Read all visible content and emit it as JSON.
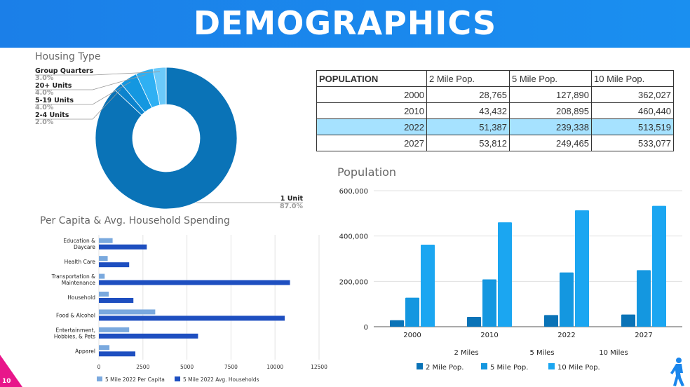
{
  "banner": {
    "title": "DEMOGRAPHICS"
  },
  "page_number": "10",
  "colors": {
    "banner": "#1a86ec",
    "dark_blue": "#0a73b7",
    "mid_blue": "#1497e0",
    "light_blue": "#1ba6f1",
    "table_highlight": "#a6e2ff",
    "accent_pink": "#e8168a"
  },
  "population_table": {
    "headers": [
      "POPULATION",
      "2 Mile Pop.",
      "5 Mile Pop.",
      "10 Mile Pop."
    ],
    "rows": [
      [
        "2000",
        "28,765",
        "127,890",
        "362,027"
      ],
      [
        "2010",
        "43,432",
        "208,895",
        "460,440"
      ],
      [
        "2022",
        "51,387",
        "239,338",
        "513,519"
      ],
      [
        "2027",
        "53,812",
        "249,465",
        "533,077"
      ]
    ],
    "highlight_row": 2
  },
  "chart_data": [
    {
      "type": "pie",
      "title": "Housing Type",
      "labels": [
        "1 Unit",
        "2-4 Units",
        "5-19 Units",
        "20+ Units",
        "Group Quarters"
      ],
      "values": [
        87.0,
        2.0,
        4.0,
        4.0,
        3.0
      ],
      "value_labels": [
        "87.0%",
        "2.0%",
        "4.0%",
        "4.0%",
        "3.0%"
      ],
      "colors": [
        "#0a73b7",
        "#0c83cd",
        "#1497e0",
        "#2fb0f3",
        "#6ccafa"
      ],
      "donut": true
    },
    {
      "type": "bar",
      "orientation": "horizontal",
      "title": "Per Capita & Avg. Household Spending",
      "categories": [
        "Education &\nDaycare",
        "Health Care",
        "Transportation &\nMaintenance",
        "Household",
        "Food & Alcohol",
        "Entertainment,\nHobbies, & Pets",
        "Apparel"
      ],
      "series": [
        {
          "name": "5 Mile 2022 Per Capita",
          "values": [
            780,
            500,
            330,
            560,
            3200,
            1720,
            600
          ],
          "color": "#7aa9de"
        },
        {
          "name": "5 Mile 2022 Avg. Households",
          "values": [
            2720,
            1720,
            10850,
            1960,
            10550,
            5630,
            2070
          ],
          "color": "#1e4fc0"
        }
      ],
      "xticks": [
        "0",
        "2500",
        "5000",
        "7500",
        "10000",
        "12500"
      ],
      "xlim": [
        0,
        12500
      ],
      "grid": true,
      "legend_position": "bottom"
    },
    {
      "type": "bar",
      "title": "Population",
      "categories": [
        "2000",
        "2010",
        "2022",
        "2027"
      ],
      "series": [
        {
          "name": "2 Mile Pop.",
          "values": [
            28765,
            43432,
            51387,
            53812
          ],
          "color": "#0a73b7"
        },
        {
          "name": "5 Mile Pop.",
          "values": [
            127890,
            208895,
            239338,
            249465
          ],
          "color": "#1497e0"
        },
        {
          "name": "10 Mile Pop.",
          "values": [
            362027,
            460440,
            513519,
            533077
          ],
          "color": "#1ba6f1"
        }
      ],
      "yticks": [
        "0",
        "200,000",
        "400,000",
        "600,000"
      ],
      "ylim": [
        0,
        600000
      ],
      "group_labels": [
        "2 Miles",
        "5 Miles",
        "10 Miles"
      ],
      "grid": true,
      "legend_position": "bottom"
    }
  ]
}
